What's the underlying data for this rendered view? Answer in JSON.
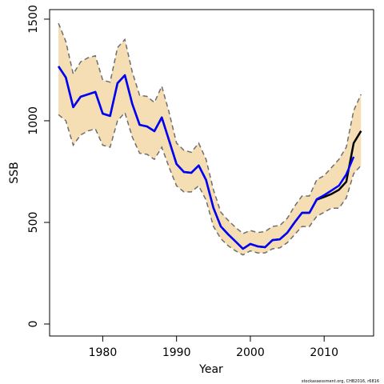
{
  "chart_data": {
    "type": "line",
    "xlabel": "Year",
    "ylabel": "SSB",
    "footnote": "stockassessment.org, CHB2016, r6816",
    "x": [
      1974,
      1975,
      1976,
      1977,
      1978,
      1979,
      1980,
      1981,
      1982,
      1983,
      1984,
      1985,
      1986,
      1987,
      1988,
      1989,
      1990,
      1991,
      1992,
      1993,
      1994,
      1995,
      1996,
      1997,
      1998,
      1999,
      2000,
      2001,
      2002,
      2003,
      2004,
      2005,
      2006,
      2007,
      2008,
      2009,
      2010,
      2011,
      2012,
      2013,
      2014,
      2015
    ],
    "series": [
      {
        "color": "#000000",
        "values": [
          1268,
          1213,
          1067,
          1118,
          1130,
          1142,
          1035,
          1024,
          1185,
          1224,
          1083,
          980,
          972,
          949,
          1016,
          902,
          787,
          748,
          744,
          780,
          709,
          571,
          480,
          441,
          406,
          370,
          394,
          382,
          378,
          413,
          417,
          449,
          500,
          547,
          547,
          612,
          625,
          640,
          660,
          700,
          890,
          950
        ]
      },
      {
        "color": "#0000ff",
        "values": [
          1268,
          1213,
          1067,
          1118,
          1130,
          1142,
          1035,
          1024,
          1185,
          1224,
          1083,
          980,
          972,
          949,
          1016,
          902,
          787,
          748,
          744,
          780,
          709,
          571,
          480,
          441,
          406,
          370,
          394,
          382,
          378,
          413,
          417,
          449,
          500,
          547,
          547,
          614,
          634,
          657,
          681,
          736,
          823,
          null
        ]
      }
    ],
    "band": {
      "color": "#f5deb3",
      "line_color": "#6e6e6e",
      "upper": [
        1480,
        1390,
        1230,
        1290,
        1310,
        1320,
        1200,
        1190,
        1360,
        1400,
        1240,
        1125,
        1120,
        1090,
        1170,
        1040,
        890,
        855,
        845,
        890,
        810,
        660,
        550,
        510,
        475,
        445,
        460,
        450,
        455,
        480,
        485,
        520,
        580,
        630,
        630,
        710,
        730,
        770,
        810,
        870,
        1050,
        1130
      ],
      "lower": [
        1030,
        1000,
        880,
        930,
        950,
        960,
        880,
        870,
        1000,
        1040,
        920,
        840,
        835,
        810,
        870,
        770,
        680,
        650,
        650,
        680,
        610,
        480,
        420,
        385,
        360,
        340,
        360,
        350,
        350,
        370,
        375,
        400,
        440,
        480,
        480,
        530,
        550,
        570,
        570,
        620,
        740,
        780
      ]
    },
    "xlim": [
      1972.8,
      2016.7
    ],
    "ylim": [
      -59,
      1547
    ],
    "xticks": [
      1980,
      1990,
      2000,
      2010
    ],
    "yticks": [
      0,
      500,
      1000,
      1500
    ]
  }
}
